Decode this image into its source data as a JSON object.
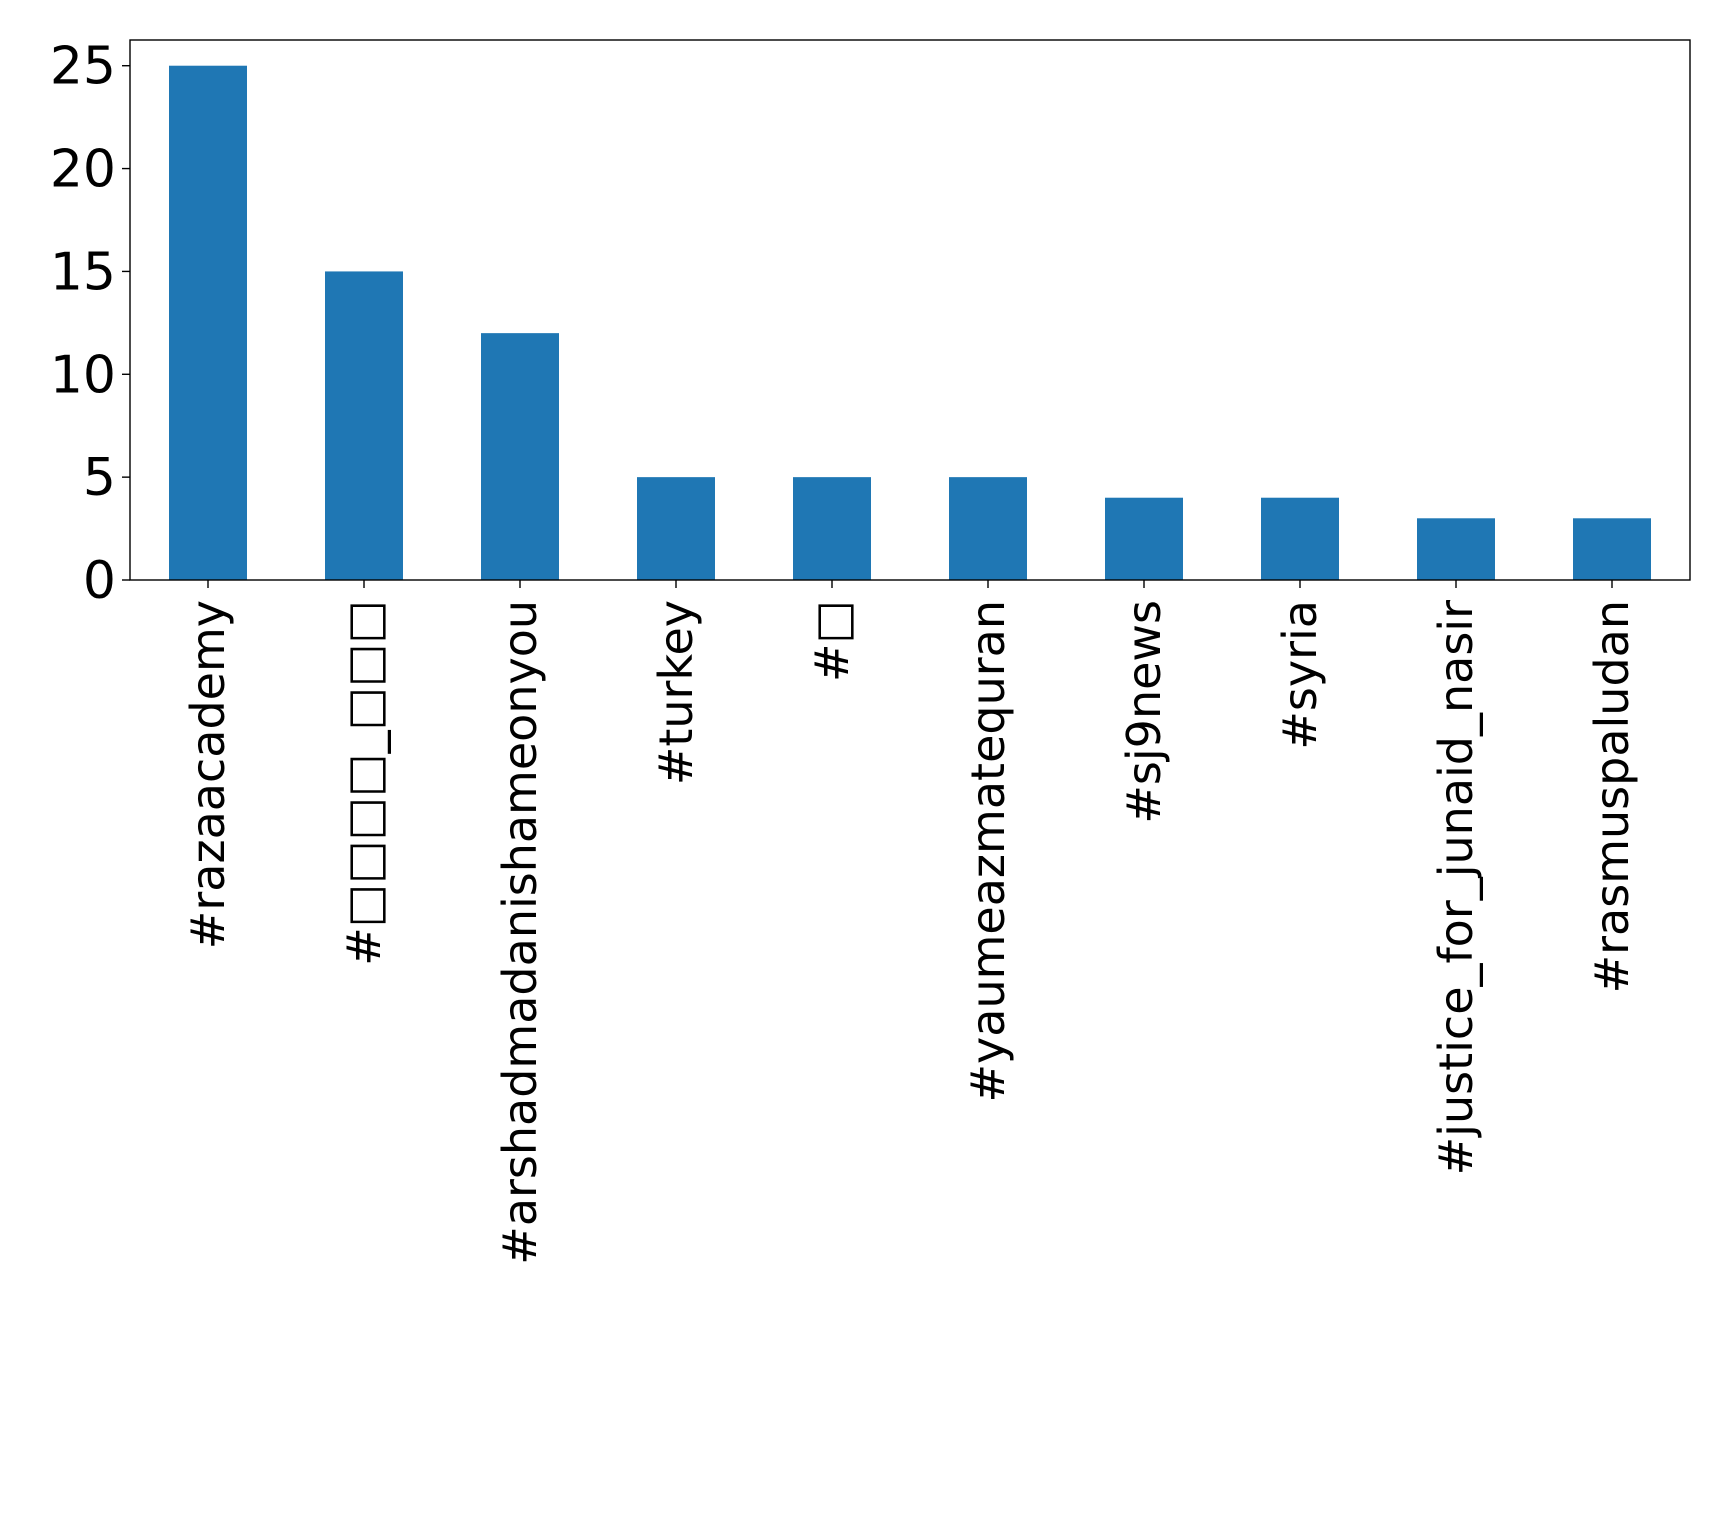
{
  "chart_data": {
    "type": "bar",
    "categories": [
      "#razaacademy",
      "#□□□□_□□□",
      "#arshadmadanishameonyou",
      "#turkey",
      "#□",
      "#yaumeazmatequran",
      "#sj9news",
      "#syria",
      "#justice_for_junaid_nasir",
      "#rasmuspaludan"
    ],
    "values": [
      25,
      15,
      12,
      5,
      5,
      5,
      4,
      4,
      3,
      3
    ],
    "y_ticks": [
      "0",
      "5",
      "10",
      "15",
      "20",
      "25"
    ],
    "ylim": [
      0,
      26.25
    ],
    "title": "",
    "xlabel": "",
    "ylabel": "",
    "bar_color": "#1f77b4",
    "grid": false,
    "legend": false
  }
}
